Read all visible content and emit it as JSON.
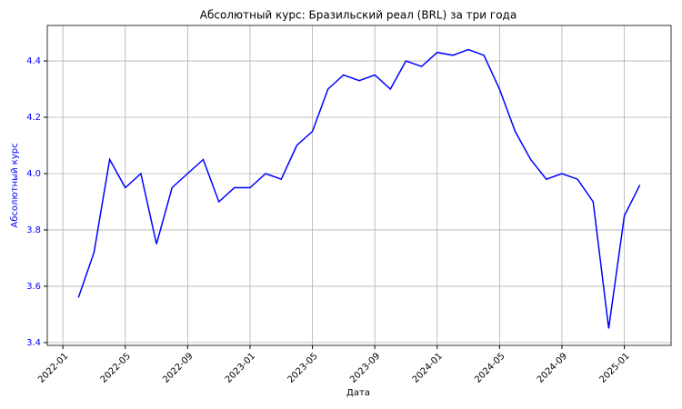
{
  "chart_data": {
    "type": "line",
    "title": "Абсолютный курс: Бразильский реал (BRL) за три года",
    "x_label": "Дата",
    "y_label": "Абсолютный курс",
    "y_label_color": "#0000ff",
    "x": [
      "2022-02",
      "2022-03",
      "2022-04",
      "2022-05",
      "2022-06",
      "2022-07",
      "2022-08",
      "2022-09",
      "2022-10",
      "2022-11",
      "2022-12",
      "2023-01",
      "2023-02",
      "2023-03",
      "2023-04",
      "2023-05",
      "2023-06",
      "2023-07",
      "2023-08",
      "2023-09",
      "2023-10",
      "2023-11",
      "2023-12",
      "2024-01",
      "2024-02",
      "2024-03",
      "2024-04",
      "2024-05",
      "2024-06",
      "2024-07",
      "2024-08",
      "2024-09",
      "2024-10",
      "2024-11",
      "2024-12",
      "2025-01",
      "2025-02"
    ],
    "series": [
      {
        "name": "BRL",
        "color": "#0000ff",
        "values": [
          3.56,
          3.72,
          4.05,
          3.95,
          4.0,
          3.75,
          3.95,
          4.0,
          4.05,
          3.9,
          3.95,
          3.95,
          4.0,
          3.98,
          4.1,
          4.15,
          4.3,
          4.35,
          4.33,
          4.35,
          4.3,
          4.4,
          4.38,
          4.43,
          4.42,
          4.44,
          4.42,
          4.3,
          4.15,
          4.05,
          3.98,
          4.0,
          3.98,
          3.9,
          3.45,
          3.85,
          3.96
        ]
      }
    ],
    "xlim": [
      "2021-12",
      "2025-04"
    ],
    "xticks": [
      "2022-01",
      "2022-05",
      "2022-09",
      "2023-01",
      "2023-05",
      "2023-09",
      "2024-01",
      "2024-05",
      "2024-09",
      "2025-01"
    ],
    "ylim": [
      3.39,
      4.526
    ],
    "yticks": [
      3.4,
      3.6,
      3.8,
      {
        "value": 4,
        "label": "4.0"
      },
      4.2,
      4.4
    ],
    "grid": true
  }
}
